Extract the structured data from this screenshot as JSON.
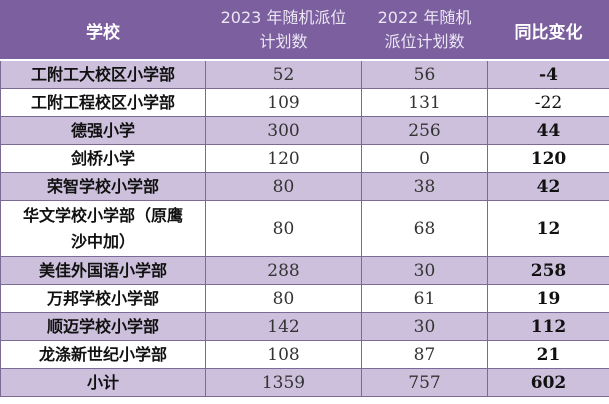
{
  "table": {
    "headers": [
      {
        "line1": "学校",
        "line2": ""
      },
      {
        "line1": "2023 年随机派位",
        "line2": "计划数"
      },
      {
        "line1": "2022 年随机",
        "line2": "派位计划数"
      },
      {
        "line1": "同比变化",
        "line2": ""
      }
    ],
    "rows": [
      {
        "school": "工附工大校区小学部",
        "plan_2023": "52",
        "plan_2022": "56",
        "change": "-4"
      },
      {
        "school": "工附工程校区小学部",
        "plan_2023": "109",
        "plan_2022": "131",
        "change": "-22"
      },
      {
        "school": "德强小学",
        "plan_2023": "300",
        "plan_2022": "256",
        "change": "44"
      },
      {
        "school": "剑桥小学",
        "plan_2023": "120",
        "plan_2022": "0",
        "change": "120"
      },
      {
        "school": "荣智学校小学部",
        "plan_2023": "80",
        "plan_2022": "38",
        "change": "42"
      },
      {
        "school": "华文学校小学部（原鹰",
        "school_line2": "沙中加）",
        "plan_2023": "80",
        "plan_2022": "68",
        "change": "12"
      },
      {
        "school": "美佳外国语小学部",
        "plan_2023": "288",
        "plan_2022": "30",
        "change": "258"
      },
      {
        "school": "万邦学校小学部",
        "plan_2023": "80",
        "plan_2022": "61",
        "change": "19"
      },
      {
        "school": "顺迈学校小学部",
        "plan_2023": "142",
        "plan_2022": "30",
        "change": "112"
      },
      {
        "school": "龙涤新世纪小学部",
        "plan_2023": "108",
        "plan_2022": "87",
        "change": "21"
      }
    ],
    "total": {
      "school": "小计",
      "plan_2023": "1359",
      "plan_2022": "757",
      "change": "602"
    }
  },
  "colors": {
    "header_bg": "#7b5f9f",
    "shaded_row_bg": "#ccc0dc",
    "plain_row_bg": "#ffffff",
    "border": "#7a6a96"
  }
}
